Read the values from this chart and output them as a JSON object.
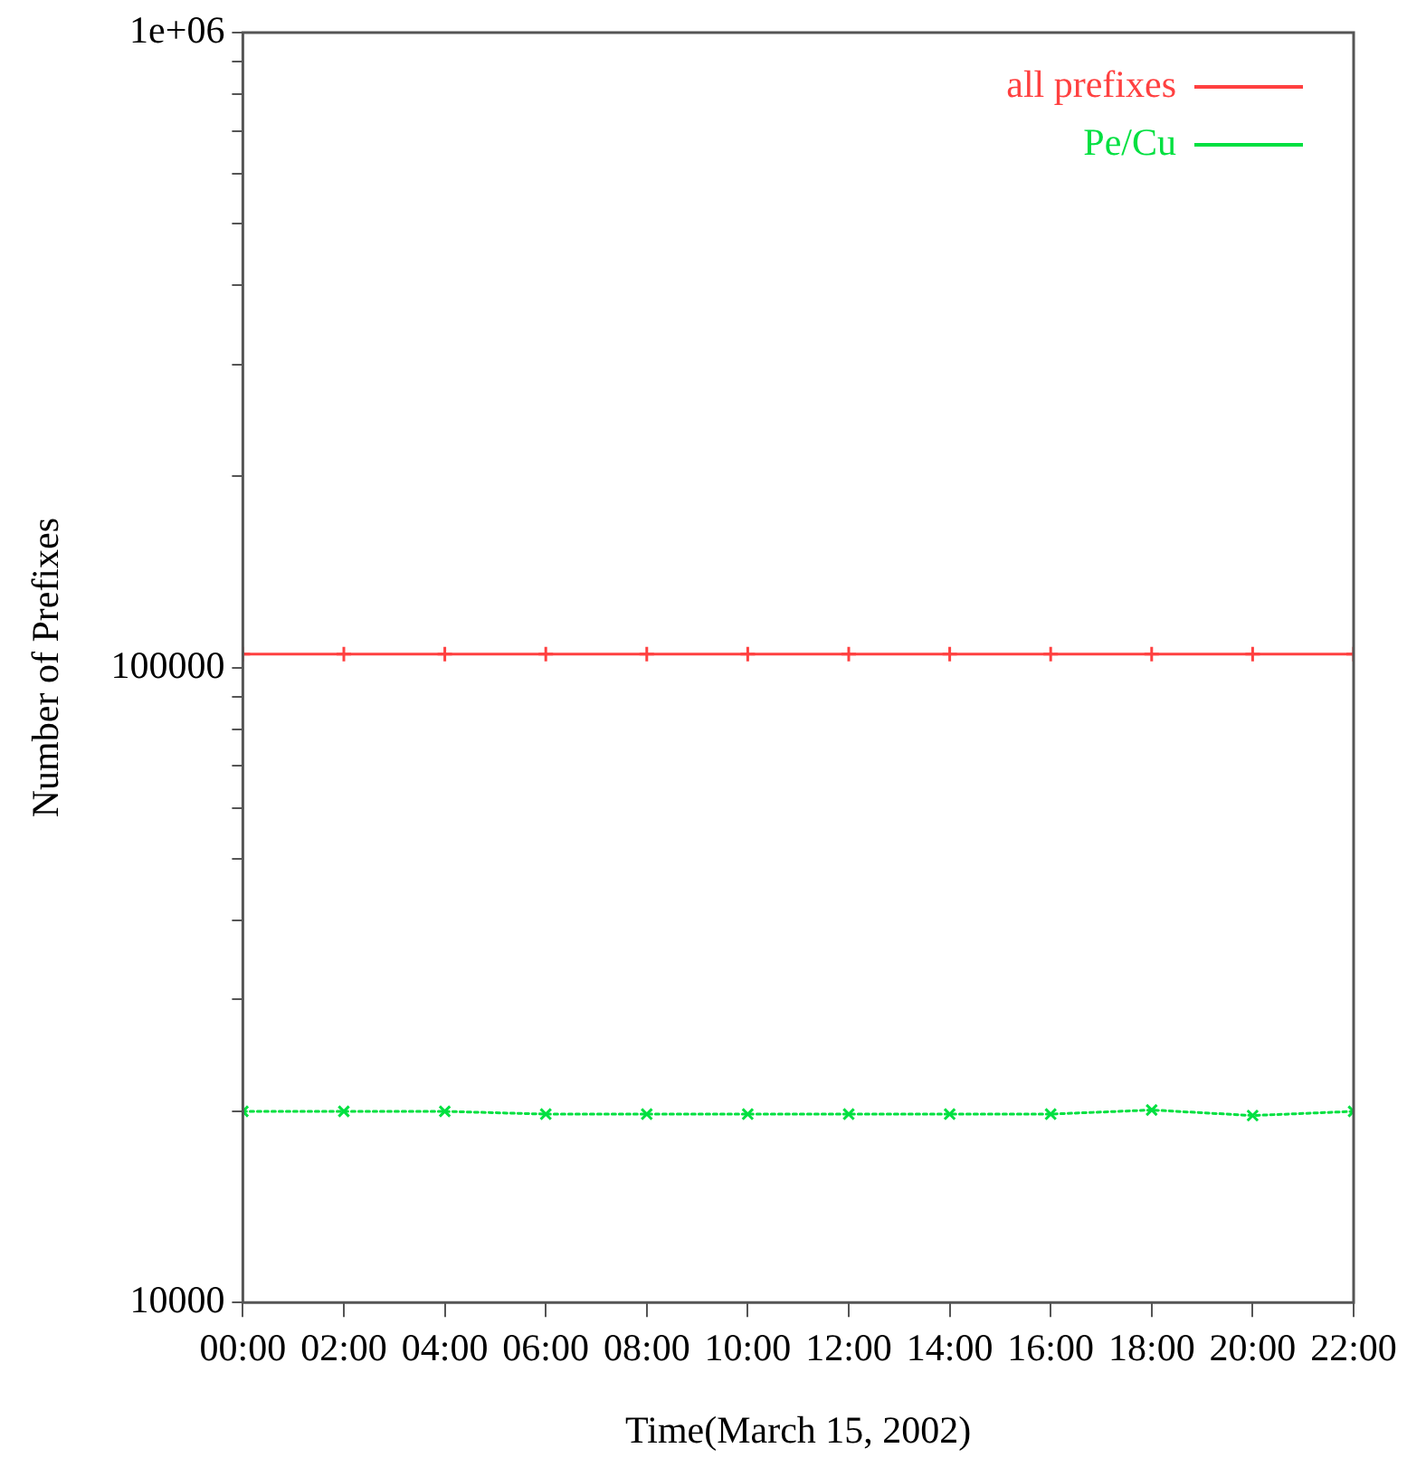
{
  "chart_data": {
    "type": "line",
    "xlabel": "Time(March 15, 2002)",
    "ylabel": "Number of Prefixes",
    "x": [
      0,
      2,
      4,
      6,
      8,
      10,
      12,
      14,
      16,
      18,
      20,
      22
    ],
    "series": [
      {
        "name": "all prefixes",
        "color": "#ff4040",
        "values": [
          105000,
          105000,
          105000,
          105000,
          105000,
          105000,
          105000,
          105000,
          105000,
          105000,
          105000,
          105000
        ]
      },
      {
        "name": "Pe/Cu",
        "color": "#00e040",
        "line_style": "dotted",
        "values": [
          20000,
          20000,
          20000,
          19800,
          19800,
          19800,
          19800,
          19800,
          19800,
          20100,
          19700,
          20000
        ]
      }
    ],
    "log": "y",
    "xlim": [
      0,
      22
    ],
    "ylim": [
      10000,
      1000000
    ],
    "xticks": [
      {
        "value": 0,
        "label": "00:00"
      },
      {
        "value": 2,
        "label": "02:00"
      },
      {
        "value": 4,
        "label": "04:00"
      },
      {
        "value": 6,
        "label": "06:00"
      },
      {
        "value": 8,
        "label": "08:00"
      },
      {
        "value": 10,
        "label": "10:00"
      },
      {
        "value": 12,
        "label": "12:00"
      },
      {
        "value": 14,
        "label": "14:00"
      },
      {
        "value": 16,
        "label": "16:00"
      },
      {
        "value": 18,
        "label": "18:00"
      },
      {
        "value": 20,
        "label": "20:00"
      },
      {
        "value": 22,
        "label": "22:00"
      }
    ],
    "yticks": [
      10000,
      {
        "value": 20000,
        "label": null
      },
      {
        "value": 30000,
        "label": null
      },
      {
        "value": 40000,
        "label": null
      },
      {
        "value": 50000,
        "label": null
      },
      {
        "value": 60000,
        "label": null
      },
      {
        "value": 70000,
        "label": null
      },
      {
        "value": 80000,
        "label": null
      },
      {
        "value": 90000,
        "label": null
      },
      100000,
      {
        "value": 200000,
        "label": null
      },
      {
        "value": 300000,
        "label": null
      },
      {
        "value": 400000,
        "label": null
      },
      {
        "value": 500000,
        "label": null
      },
      {
        "value": 600000,
        "label": null
      },
      {
        "value": 700000,
        "label": null
      },
      {
        "value": 800000,
        "label": null
      },
      {
        "value": 900000,
        "label": null
      },
      {
        "value": 1000000,
        "label": "1e+06"
      }
    ],
    "grid": false,
    "legend": "top right",
    "marker": "cross"
  }
}
